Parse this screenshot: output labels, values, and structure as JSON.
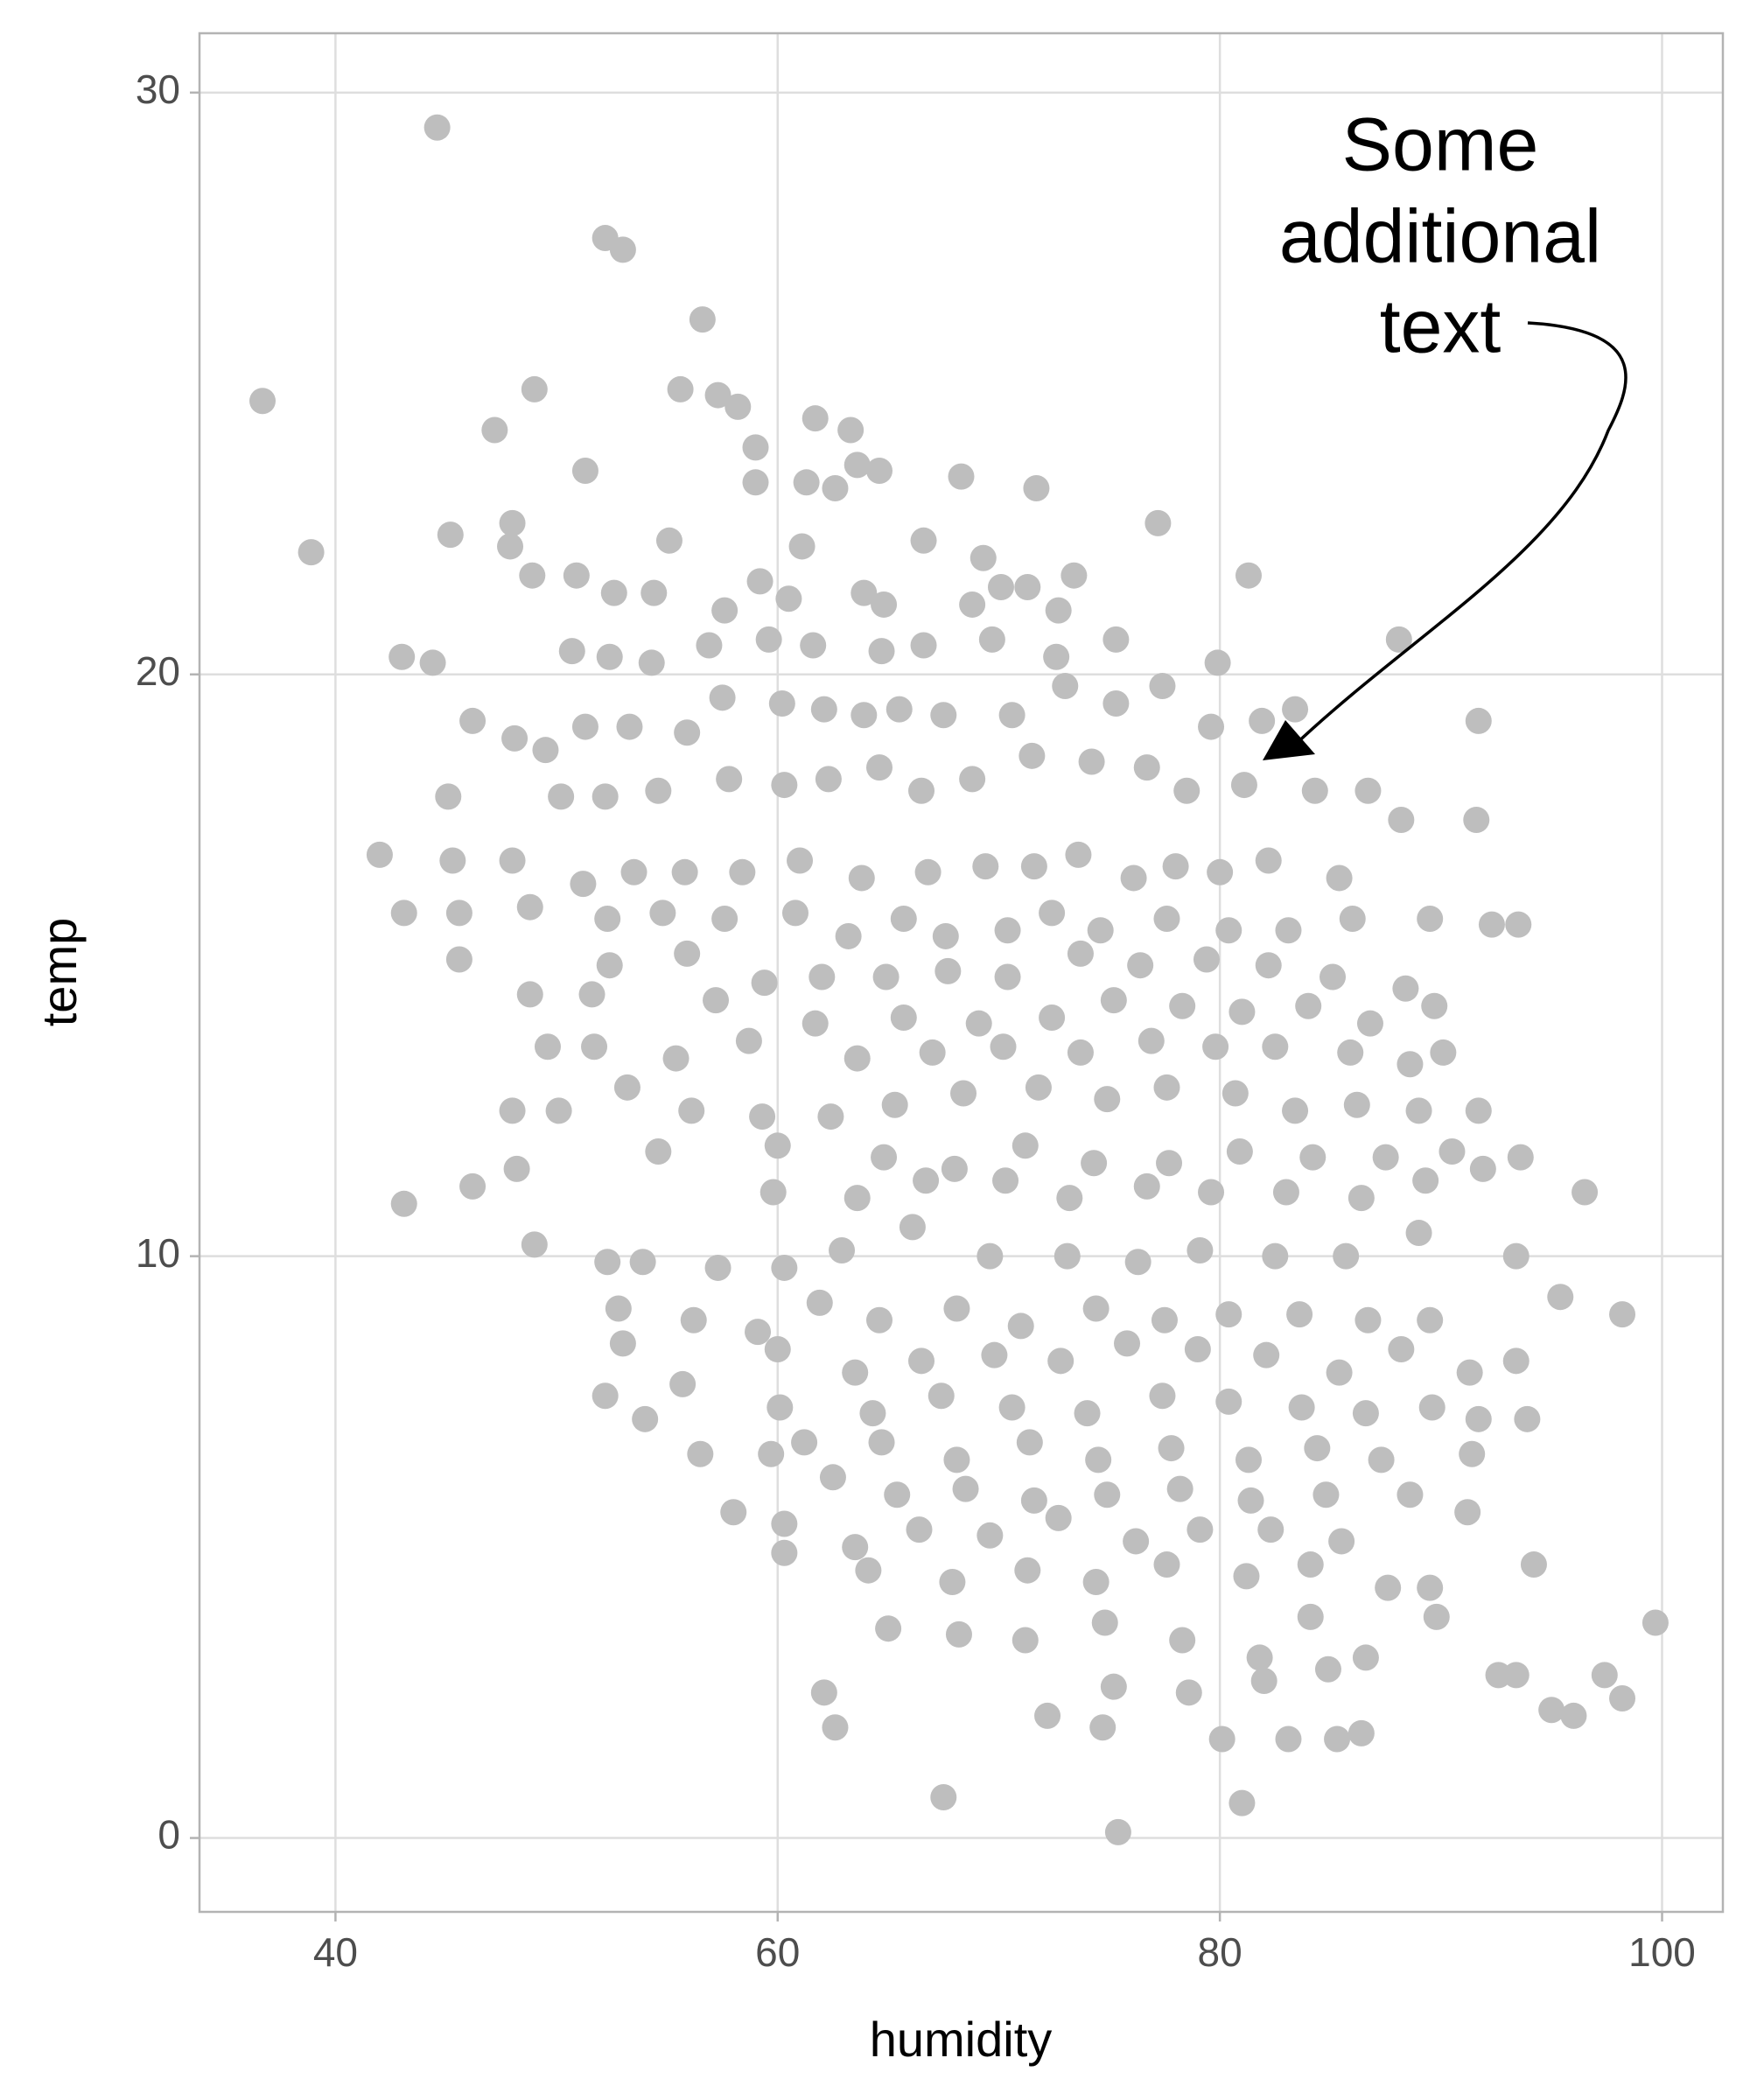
{
  "chart_data": {
    "type": "scatter",
    "x_label": "humidity",
    "y_label": "temp",
    "annotation": [
      "Some",
      "additional",
      "text"
    ],
    "xlim": [
      33.85,
      102.75
    ],
    "ylim": [
      -1.27,
      31.02
    ],
    "xticks": [
      40,
      60,
      80,
      100
    ],
    "yticks": [
      0,
      10,
      20,
      30
    ],
    "grid": true,
    "color": "#bebebe",
    "x": [
      44.6,
      36.7,
      38.9,
      52.2,
      53.0,
      56.6,
      49.0,
      47.2,
      55.6,
      57.3,
      58.2,
      61.7,
      63.3,
      59.0,
      51.3,
      59.0,
      61.3,
      62.6,
      63.6,
      64.6,
      68.3,
      71.7,
      45.2,
      48.0,
      47.9,
      55.1,
      61.1,
      66.6,
      69.3,
      77.2,
      70.1,
      71.3,
      72.7,
      48.9,
      50.9,
      52.6,
      54.4,
      57.6,
      59.2,
      60.5,
      63.9,
      64.8,
      68.8,
      73.4,
      81.3,
      44.4,
      43.0,
      50.7,
      52.4,
      54.3,
      56.9,
      59.6,
      61.6,
      64.7,
      66.6,
      69.7,
      72.6,
      75.3,
      79.9,
      88.1,
      46.2,
      48.1,
      49.5,
      51.3,
      53.3,
      55.9,
      57.5,
      60.2,
      62.1,
      63.9,
      65.5,
      67.5,
      70.6,
      73.0,
      75.3,
      77.4,
      79.6,
      81.9,
      83.4,
      91.7,
      45.1,
      50.2,
      52.2,
      54.6,
      57.8,
      60.3,
      62.3,
      64.6,
      66.5,
      68.8,
      71.5,
      74.2,
      76.7,
      78.5,
      81.1,
      84.3,
      86.7,
      88.2,
      91.6,
      42.0,
      45.3,
      48.0,
      51.2,
      53.5,
      55.8,
      58.4,
      61.0,
      63.8,
      66.8,
      69.4,
      71.6,
      73.6,
      76.1,
      78.0,
      80.0,
      82.2,
      85.4,
      43.1,
      45.6,
      48.8,
      52.3,
      54.8,
      57.6,
      60.8,
      63.2,
      65.7,
      67.6,
      70.4,
      72.4,
      74.6,
      77.6,
      80.4,
      83.1,
      86.0,
      89.5,
      92.3,
      93.5,
      45.6,
      52.4,
      55.9,
      59.4,
      62.0,
      64.9,
      67.7,
      70.4,
      73.7,
      76.4,
      79.4,
      82.2,
      85.1,
      88.4,
      48.8,
      51.6,
      57.2,
      61.7,
      65.7,
      69.1,
      72.4,
      75.2,
      78.3,
      81.0,
      84.0,
      86.8,
      89.7,
      49.6,
      51.7,
      55.4,
      58.7,
      63.6,
      67.0,
      70.2,
      73.7,
      76.9,
      79.8,
      82.5,
      85.9,
      88.6,
      90.1,
      48.0,
      50.1,
      53.2,
      56.1,
      59.3,
      62.4,
      65.3,
      68.4,
      71.8,
      74.9,
      77.6,
      80.7,
      83.4,
      86.2,
      89.0,
      91.7,
      54.6,
      60.0,
      64.8,
      68.0,
      71.2,
      74.3,
      77.7,
      80.9,
      84.2,
      87.5,
      90.5,
      93.6,
      46.2,
      48.2,
      59.8,
      63.6,
      66.7,
      70.3,
      73.2,
      76.7,
      79.6,
      83.0,
      86.4,
      89.3,
      91.9,
      96.5,
      43.1,
      49.0,
      52.3,
      53.9,
      57.3,
      60.3,
      62.9,
      66.1,
      69.6,
      73.1,
      76.3,
      79.1,
      82.5,
      85.7,
      89.0,
      93.4,
      52.8,
      56.2,
      59.1,
      61.9,
      64.6,
      68.1,
      71.0,
      74.4,
      77.5,
      80.4,
      83.6,
      86.7,
      89.5,
      95.4,
      98.2,
      53.0,
      60.0,
      63.5,
      66.5,
      69.8,
      72.8,
      75.8,
      79.0,
      82.1,
      85.4,
      88.2,
      91.3,
      93.4,
      52.2,
      55.7,
      60.1,
      64.3,
      67.4,
      70.6,
      74.0,
      77.4,
      80.4,
      83.7,
      86.6,
      89.6,
      91.7,
      93.9,
      54.0,
      56.5,
      61.2,
      64.7,
      68.1,
      71.4,
      74.5,
      77.8,
      81.3,
      84.4,
      87.3,
      91.4,
      59.7,
      62.5,
      65.4,
      68.5,
      71.6,
      74.9,
      78.2,
      81.4,
      84.8,
      88.6,
      91.2,
      58.0,
      60.3,
      63.5,
      66.4,
      69.6,
      72.7,
      76.2,
      79.1,
      82.3,
      85.5,
      60.3,
      64.1,
      67.9,
      71.3,
      74.4,
      77.6,
      81.2,
      84.1,
      87.6,
      89.5,
      94.2,
      65.0,
      68.2,
      71.2,
      74.8,
      78.3,
      81.8,
      84.1,
      86.6,
      89.8,
      99.7,
      62.1,
      72.2,
      75.2,
      78.6,
      82.0,
      84.9,
      92.6,
      93.4,
      97.4,
      98.2,
      95.0,
      96.0,
      62.6,
      74.7,
      80.1,
      83.1,
      85.3,
      86.4,
      67.5,
      75.4,
      81.0
    ],
    "values": [
      29.4,
      24.7,
      22.1,
      27.5,
      27.3,
      26.1,
      24.9,
      24.2,
      24.9,
      24.8,
      24.6,
      24.4,
      24.2,
      23.9,
      23.5,
      23.3,
      23.3,
      23.2,
      23.6,
      23.5,
      23.4,
      23.2,
      22.4,
      22.6,
      22.2,
      22.3,
      22.2,
      22.3,
      22.0,
      22.6,
      21.5,
      21.5,
      21.1,
      21.7,
      21.7,
      21.4,
      21.4,
      21.1,
      21.6,
      21.3,
      21.4,
      21.2,
      21.2,
      21.7,
      21.7,
      20.2,
      20.3,
      20.4,
      20.3,
      20.2,
      20.5,
      20.6,
      20.5,
      20.4,
      20.5,
      20.6,
      20.3,
      20.6,
      20.2,
      20.6,
      19.2,
      18.9,
      18.7,
      19.1,
      19.1,
      19.0,
      19.6,
      19.5,
      19.4,
      19.3,
      19.4,
      19.3,
      19.3,
      19.8,
      19.5,
      19.8,
      19.1,
      19.2,
      19.4,
      19.2,
      17.9,
      17.9,
      17.9,
      18.0,
      18.2,
      18.1,
      18.2,
      18.4,
      18.0,
      18.2,
      18.6,
      18.5,
      18.4,
      18.0,
      18.1,
      18.0,
      18.0,
      17.5,
      17.5,
      16.9,
      16.8,
      16.8,
      16.4,
      16.6,
      16.6,
      16.6,
      16.8,
      16.5,
      16.6,
      16.7,
      16.7,
      16.9,
      16.5,
      16.7,
      16.6,
      16.8,
      16.5,
      15.9,
      15.9,
      16.0,
      15.8,
      15.9,
      15.8,
      15.9,
      15.5,
      15.8,
      15.5,
      15.6,
      15.9,
      15.6,
      15.8,
      15.6,
      15.6,
      15.8,
      15.8,
      15.7,
      15.7,
      15.1,
      15.0,
      15.2,
      14.7,
      14.8,
      14.8,
      14.9,
      14.8,
      15.2,
      15.0,
      15.1,
      15.0,
      14.8,
      14.6,
      14.5,
      14.5,
      14.4,
      14.0,
      14.1,
      14.0,
      14.1,
      14.4,
      14.3,
      14.2,
      14.3,
      14.0,
      14.3,
      13.6,
      13.6,
      13.4,
      13.7,
      13.4,
      13.5,
      13.6,
      13.5,
      13.7,
      13.6,
      13.6,
      13.5,
      13.3,
      13.5,
      12.5,
      12.5,
      12.9,
      12.5,
      12.4,
      12.4,
      12.6,
      12.8,
      12.9,
      12.7,
      12.9,
      12.8,
      12.5,
      12.6,
      12.5,
      12.5,
      11.8,
      11.9,
      11.7,
      11.5,
      11.9,
      11.6,
      11.6,
      11.8,
      11.7,
      11.7,
      11.8,
      11.7,
      11.2,
      11.5,
      11.1,
      11.0,
      11.3,
      11.3,
      11.0,
      11.2,
      11.1,
      11.1,
      11.0,
      11.3,
      11.5,
      11.1,
      10.9,
      10.2,
      9.9,
      9.9,
      9.8,
      9.8,
      10.1,
      10.5,
      10.0,
      10.0,
      9.9,
      10.1,
      10.0,
      10.0,
      10.4,
      10.0,
      9.1,
      8.9,
      8.7,
      9.2,
      8.9,
      9.1,
      8.8,
      9.1,
      8.9,
      9.0,
      9.0,
      8.9,
      8.9,
      9.3,
      9.0,
      8.5,
      8.4,
      8.0,
      8.2,
      8.3,
      8.2,
      8.5,
      8.4,
      8.3,
      8.0,
      8.4,
      8.0,
      8.2,
      7.6,
      7.8,
      7.4,
      7.3,
      7.6,
      7.4,
      7.3,
      7.6,
      7.5,
      7.4,
      7.3,
      7.4,
      7.2,
      7.2,
      7.2,
      6.6,
      6.8,
      6.8,
      6.5,
      6.8,
      6.5,
      6.7,
      6.5,
      6.7,
      6.5,
      6.6,
      6.6,
      6.2,
      5.9,
      6.0,
      5.8,
      5.9,
      6.0,
      5.8,
      5.9,
      5.9,
      5.6,
      5.6,
      5.4,
      5.0,
      5.3,
      5.2,
      5.5,
      5.1,
      5.3,
      5.3,
      5.1,
      4.9,
      4.6,
      4.4,
      4.6,
      4.4,
      4.7,
      4.5,
      4.7,
      4.3,
      4.3,
      4.7,
      3.6,
      3.5,
      3.4,
      3.7,
      3.4,
      3.1,
      3.8,
      3.1,
      3.8,
      3.7,
      2.5,
      2.1,
      2.6,
      2.5,
      2.7,
      2.9,
      2.8,
      2.8,
      2.8,
      2.4,
      2.2,
      2.1,
      1.9,
      1.9,
      1.7,
      1.7,
      1.7,
      1.8,
      0.7,
      0.1,
      0.6
    ]
  }
}
